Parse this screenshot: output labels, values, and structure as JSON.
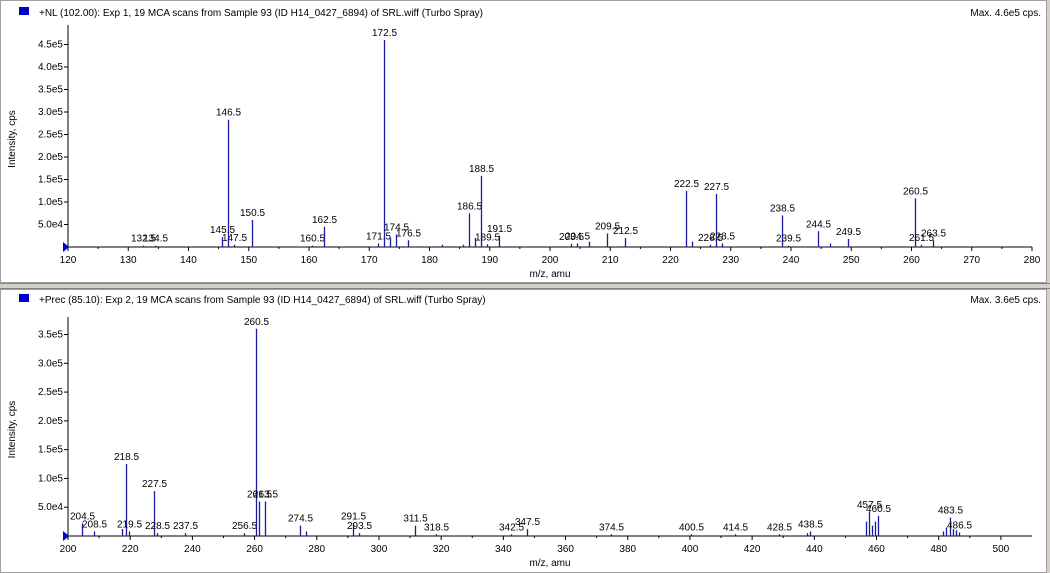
{
  "colors": {
    "trace": "#1a1aa6",
    "marker": "#0000cc",
    "axis": "#000000",
    "label": "#000000"
  },
  "panels": [
    {
      "header": "+NL (102.00): Exp 1, 19 MCA scans from Sample 93 (ID H14_0427_6894) of SRL.wiff (Turbo Spray)",
      "max_label": "Max. 4.6e5 cps.",
      "ylabel": "Intensity, cps",
      "xlabel": "m/z, amu"
    },
    {
      "header": "+Prec (85.10): Exp 2, 19 MCA scans from Sample 93 (ID H14_0427_6894) of SRL.wiff (Turbo Spray)",
      "max_label": "Max. 3.6e5 cps.",
      "ylabel": "Intensity, cps",
      "xlabel": "m/z, amu"
    }
  ],
  "chart_data": [
    {
      "type": "bar",
      "title": "+NL (102.00): Exp 1, 19 MCA scans from Sample 93 (ID H14_0427_6894) of SRL.wiff (Turbo Spray)",
      "xlabel": "m/z, amu",
      "ylabel": "Intensity, cps",
      "xlim": [
        120,
        280
      ],
      "ylim": [
        0,
        480000
      ],
      "x_ticks": [
        "120",
        "130",
        "140",
        "150",
        "160",
        "170",
        "180",
        "190",
        "200",
        "210",
        "220",
        "230",
        "240",
        "250",
        "260",
        "270",
        "280"
      ],
      "y_ticks": [
        {
          "value": 50000,
          "label": "5.0e4"
        },
        {
          "value": 100000,
          "label": "1.0e5"
        },
        {
          "value": 150000,
          "label": "1.5e5"
        },
        {
          "value": 200000,
          "label": "2.0e5"
        },
        {
          "value": 250000,
          "label": "2.5e5"
        },
        {
          "value": 300000,
          "label": "3.0e5"
        },
        {
          "value": 350000,
          "label": "3.5e5"
        },
        {
          "value": 400000,
          "label": "4.0e5"
        },
        {
          "value": 450000,
          "label": "4.5e5"
        }
      ],
      "peaks": [
        {
          "x": 132.5,
          "y": 3000,
          "label": "132.5"
        },
        {
          "x": 134.5,
          "y": 3000,
          "label": "134.5"
        },
        {
          "x": 145.5,
          "y": 22000,
          "label": "145.5"
        },
        {
          "x": 146.5,
          "y": 283000,
          "label": "146.5"
        },
        {
          "x": 147.5,
          "y": 5000,
          "label": "147.5"
        },
        {
          "x": 150.5,
          "y": 60000,
          "label": "150.5"
        },
        {
          "x": 160.5,
          "y": 3000,
          "label": "160.5"
        },
        {
          "x": 162.5,
          "y": 45000,
          "label": "162.5"
        },
        {
          "x": 171.5,
          "y": 8000,
          "label": "171.5"
        },
        {
          "x": 172.5,
          "y": 460000,
          "label": "172.5"
        },
        {
          "x": 173.5,
          "y": 20000,
          "label": ""
        },
        {
          "x": 174.5,
          "y": 28000,
          "label": "174.5"
        },
        {
          "x": 176.5,
          "y": 15000,
          "label": "176.5"
        },
        {
          "x": 182.0,
          "y": 5000,
          "label": ""
        },
        {
          "x": 185.5,
          "y": 5000,
          "label": ""
        },
        {
          "x": 186.5,
          "y": 75000,
          "label": "186.5"
        },
        {
          "x": 187.5,
          "y": 20000,
          "label": ""
        },
        {
          "x": 188.5,
          "y": 158000,
          "label": "188.5"
        },
        {
          "x": 189.5,
          "y": 6000,
          "label": "189.5"
        },
        {
          "x": 191.5,
          "y": 25000,
          "label": "191.5"
        },
        {
          "x": 203.5,
          "y": 7000,
          "label": "203.5"
        },
        {
          "x": 204.5,
          "y": 8000,
          "label": "204.5"
        },
        {
          "x": 206.5,
          "y": 12000,
          "label": ""
        },
        {
          "x": 209.5,
          "y": 30000,
          "label": "209.5"
        },
        {
          "x": 212.5,
          "y": 20000,
          "label": "212.5"
        },
        {
          "x": 222.5,
          "y": 125000,
          "label": "222.5"
        },
        {
          "x": 223.5,
          "y": 12000,
          "label": ""
        },
        {
          "x": 226.5,
          "y": 5000,
          "label": "226.5"
        },
        {
          "x": 227.5,
          "y": 118000,
          "label": "227.5"
        },
        {
          "x": 228.5,
          "y": 8000,
          "label": "228.5"
        },
        {
          "x": 238.5,
          "y": 70000,
          "label": "238.5"
        },
        {
          "x": 239.5,
          "y": 3000,
          "label": "239.5"
        },
        {
          "x": 244.5,
          "y": 35000,
          "label": "244.5"
        },
        {
          "x": 246.5,
          "y": 8000,
          "label": ""
        },
        {
          "x": 249.5,
          "y": 18000,
          "label": "249.5"
        },
        {
          "x": 260.5,
          "y": 108000,
          "label": "260.5"
        },
        {
          "x": 261.5,
          "y": 5000,
          "label": "261.5"
        },
        {
          "x": 263.5,
          "y": 15000,
          "label": "263.5"
        }
      ]
    },
    {
      "type": "bar",
      "title": "+Prec (85.10): Exp 2, 19 MCA scans from Sample 93 (ID H14_0427_6894) of SRL.wiff (Turbo Spray)",
      "xlabel": "m/z, amu",
      "ylabel": "Intensity, cps",
      "xlim": [
        200,
        510
      ],
      "ylim": [
        0,
        370000
      ],
      "x_ticks": [
        "200",
        "220",
        "240",
        "260",
        "280",
        "300",
        "320",
        "340",
        "360",
        "380",
        "400",
        "420",
        "440",
        "460",
        "480",
        "500"
      ],
      "y_ticks": [
        {
          "value": 50000,
          "label": "5.0e4"
        },
        {
          "value": 100000,
          "label": "1.0e5"
        },
        {
          "value": 150000,
          "label": "1.5e5"
        },
        {
          "value": 200000,
          "label": "2.0e5"
        },
        {
          "value": 250000,
          "label": "2.5e5"
        },
        {
          "value": 300000,
          "label": "3.0e5"
        },
        {
          "value": 350000,
          "label": "3.5e5"
        }
      ],
      "peaks": [
        {
          "x": 204.5,
          "y": 22000,
          "label": "204.5"
        },
        {
          "x": 208.5,
          "y": 8000,
          "label": "208.5"
        },
        {
          "x": 217.5,
          "y": 12000,
          "label": ""
        },
        {
          "x": 218.5,
          "y": 125000,
          "label": "218.5"
        },
        {
          "x": 219.5,
          "y": 8000,
          "label": "219.5"
        },
        {
          "x": 227.5,
          "y": 78000,
          "label": "227.5"
        },
        {
          "x": 228.5,
          "y": 5000,
          "label": "228.5"
        },
        {
          "x": 237.5,
          "y": 5000,
          "label": "237.5"
        },
        {
          "x": 256.5,
          "y": 5000,
          "label": "256.5"
        },
        {
          "x": 260.5,
          "y": 360000,
          "label": "260.5"
        },
        {
          "x": 261.5,
          "y": 60000,
          "label": "261.5"
        },
        {
          "x": 263.5,
          "y": 60000,
          "label": "263.5"
        },
        {
          "x": 274.5,
          "y": 18000,
          "label": "274.5"
        },
        {
          "x": 276.5,
          "y": 8000,
          "label": ""
        },
        {
          "x": 291.5,
          "y": 22000,
          "label": "291.5"
        },
        {
          "x": 293.5,
          "y": 5000,
          "label": "293.5"
        },
        {
          "x": 311.5,
          "y": 18000,
          "label": "311.5"
        },
        {
          "x": 318.5,
          "y": 3000,
          "label": "318.5"
        },
        {
          "x": 342.5,
          "y": 3000,
          "label": "342.5"
        },
        {
          "x": 347.5,
          "y": 12000,
          "label": "347.5"
        },
        {
          "x": 374.5,
          "y": 3000,
          "label": "374.5"
        },
        {
          "x": 400.5,
          "y": 3000,
          "label": "400.5"
        },
        {
          "x": 414.5,
          "y": 3000,
          "label": "414.5"
        },
        {
          "x": 428.5,
          "y": 3000,
          "label": "428.5"
        },
        {
          "x": 437.5,
          "y": 5000,
          "label": ""
        },
        {
          "x": 438.5,
          "y": 8000,
          "label": "438.5"
        },
        {
          "x": 456.5,
          "y": 25000,
          "label": ""
        },
        {
          "x": 457.5,
          "y": 42000,
          "label": "457.5"
        },
        {
          "x": 458.5,
          "y": 18000,
          "label": ""
        },
        {
          "x": 459.5,
          "y": 25000,
          "label": ""
        },
        {
          "x": 460.5,
          "y": 35000,
          "label": "460.5"
        },
        {
          "x": 481.5,
          "y": 8000,
          "label": ""
        },
        {
          "x": 482.5,
          "y": 15000,
          "label": ""
        },
        {
          "x": 483.5,
          "y": 32000,
          "label": "483.5"
        },
        {
          "x": 484.5,
          "y": 12000,
          "label": ""
        },
        {
          "x": 485.5,
          "y": 10000,
          "label": ""
        },
        {
          "x": 486.5,
          "y": 6000,
          "label": "486.5"
        }
      ]
    }
  ]
}
